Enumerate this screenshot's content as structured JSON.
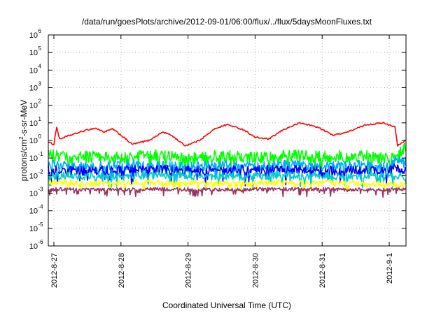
{
  "chart_data": {
    "type": "line",
    "title": "/data/run/goesPlots/archive/2012-09-01/06:00/flux/../flux/5daysMoonFluxes.txt",
    "xlabel": "Coordinated Universal Time (UTC)",
    "ylabel": "protons/cm2-s-sr-MeV",
    "y_scale": "log",
    "ylim": [
      1e-06,
      1000000.0
    ],
    "y_ticks": [
      {
        "base": "10",
        "exp": "-6",
        "value": 1e-06
      },
      {
        "base": "10",
        "exp": "-5",
        "value": 1e-05
      },
      {
        "base": "10",
        "exp": "-4",
        "value": 0.0001
      },
      {
        "base": "10",
        "exp": "-3",
        "value": 0.001
      },
      {
        "base": "10",
        "exp": "-2",
        "value": 0.01
      },
      {
        "base": "10",
        "exp": "-1",
        "value": 0.1
      },
      {
        "base": "10",
        "exp": "0",
        "value": 1
      },
      {
        "base": "10",
        "exp": "1",
        "value": 10
      },
      {
        "base": "10",
        "exp": "2",
        "value": 100
      },
      {
        "base": "10",
        "exp": "3",
        "value": 1000
      },
      {
        "base": "10",
        "exp": "4",
        "value": 10000
      },
      {
        "base": "10",
        "exp": "5",
        "value": 100000
      },
      {
        "base": "10",
        "exp": "6",
        "value": 1000000
      }
    ],
    "x_ticks": [
      "2012-8-27",
      "2012-8-28",
      "2012-8-29",
      "2012-8-30",
      "2012-8-31",
      "2012-9-1"
    ],
    "xlim": [
      "2012-08-26 22:00",
      "2012-09-01 06:00"
    ],
    "grid": true,
    "series": [
      {
        "color": "#ff0000",
        "points": [
          [
            "2012-08-26 22:00",
            0.8
          ],
          [
            "2012-08-27 00:00",
            0.6
          ],
          [
            "2012-08-27 01:00",
            6.0
          ],
          [
            "2012-08-27 02:00",
            1.2
          ],
          [
            "2012-08-27 06:00",
            2.0
          ],
          [
            "2012-08-27 12:00",
            4.0
          ],
          [
            "2012-08-27 15:00",
            5.0
          ],
          [
            "2012-08-27 18:00",
            3.0
          ],
          [
            "2012-08-27 21:00",
            4.5
          ],
          [
            "2012-08-28 00:00",
            2.0
          ],
          [
            "2012-08-28 04:00",
            0.6
          ],
          [
            "2012-08-28 10:00",
            1.0
          ],
          [
            "2012-08-28 15:00",
            3.0
          ],
          [
            "2012-08-28 18:00",
            2.0
          ],
          [
            "2012-08-28 23:00",
            0.5
          ],
          [
            "2012-08-29 04:00",
            1.0
          ],
          [
            "2012-08-29 10:00",
            5.0
          ],
          [
            "2012-08-29 14:00",
            8.0
          ],
          [
            "2012-08-29 20:00",
            4.0
          ],
          [
            "2012-08-30 00:00",
            1.5
          ],
          [
            "2012-08-30 05:00",
            1.2
          ],
          [
            "2012-08-30 10:00",
            4.0
          ],
          [
            "2012-08-30 16:00",
            10.0
          ],
          [
            "2012-08-30 22:00",
            6.0
          ],
          [
            "2012-08-31 04:00",
            2.0
          ],
          [
            "2012-08-31 09:00",
            3.0
          ],
          [
            "2012-08-31 16:00",
            8.0
          ],
          [
            "2012-08-31 22:00",
            10.0
          ],
          [
            "2012-09-01 02:00",
            6.0
          ],
          [
            "2012-09-01 03:00",
            0.5
          ],
          [
            "2012-09-01 06:00",
            1.0
          ]
        ]
      },
      {
        "color": "#00ff00",
        "points": [
          [
            "2012-08-26 22:00",
            0.15
          ],
          [
            "2012-08-27 06:00",
            0.1
          ],
          [
            "2012-08-27 12:00",
            0.12
          ],
          [
            "2012-08-28 00:00",
            0.1
          ],
          [
            "2012-08-28 12:00",
            0.14
          ],
          [
            "2012-08-29 00:00",
            0.09
          ],
          [
            "2012-08-29 12:00",
            0.13
          ],
          [
            "2012-08-30 00:00",
            0.1
          ],
          [
            "2012-08-30 12:00",
            0.14
          ],
          [
            "2012-08-31 00:00",
            0.11
          ],
          [
            "2012-08-31 12:00",
            0.13
          ],
          [
            "2012-09-01 00:00",
            0.1
          ],
          [
            "2012-09-01 03:00",
            0.15
          ],
          [
            "2012-09-01 06:00",
            0.4
          ]
        ]
      },
      {
        "color": "#00aaff",
        "points": [
          [
            "2012-08-26 22:00",
            0.04
          ],
          [
            "2012-08-27 12:00",
            0.03
          ],
          [
            "2012-08-28 00:00",
            0.04
          ],
          [
            "2012-08-28 12:00",
            0.035
          ],
          [
            "2012-08-29 00:00",
            0.03
          ],
          [
            "2012-08-29 12:00",
            0.04
          ],
          [
            "2012-08-30 00:00",
            0.035
          ],
          [
            "2012-08-30 12:00",
            0.04
          ],
          [
            "2012-08-31 00:00",
            0.03
          ],
          [
            "2012-08-31 12:00",
            0.04
          ],
          [
            "2012-09-01 00:00",
            0.03
          ],
          [
            "2012-09-01 03:00",
            0.1
          ],
          [
            "2012-09-01 06:00",
            0.06
          ]
        ]
      },
      {
        "color": "#0000ff",
        "points": [
          [
            "2012-08-26 22:00",
            0.02
          ],
          [
            "2012-08-27 12:00",
            0.018
          ],
          [
            "2012-08-28 00:00",
            0.02
          ],
          [
            "2012-08-28 12:00",
            0.022
          ],
          [
            "2012-08-29 00:00",
            0.018
          ],
          [
            "2012-08-29 12:00",
            0.02
          ],
          [
            "2012-08-30 00:00",
            0.02
          ],
          [
            "2012-08-30 12:00",
            0.022
          ],
          [
            "2012-08-31 00:00",
            0.018
          ],
          [
            "2012-08-31 12:00",
            0.02
          ],
          [
            "2012-09-01 00:00",
            0.018
          ],
          [
            "2012-09-01 03:00",
            0.03
          ],
          [
            "2012-09-01 06:00",
            0.02
          ]
        ]
      },
      {
        "color": "#00cccc",
        "points": [
          [
            "2012-08-26 22:00",
            0.01
          ],
          [
            "2012-08-27 12:00",
            0.009
          ],
          [
            "2012-08-28 12:00",
            0.01
          ],
          [
            "2012-08-29 12:00",
            0.009
          ],
          [
            "2012-08-30 12:00",
            0.01
          ],
          [
            "2012-08-31 12:00",
            0.009
          ],
          [
            "2012-09-01 03:00",
            0.01
          ],
          [
            "2012-09-01 06:00",
            0.008
          ]
        ]
      },
      {
        "color": "#ffff00",
        "points": [
          [
            "2012-08-26 22:00",
            0.004
          ],
          [
            "2012-08-27 12:00",
            0.0035
          ],
          [
            "2012-08-28 12:00",
            0.004
          ],
          [
            "2012-08-29 12:00",
            0.0035
          ],
          [
            "2012-08-30 12:00",
            0.004
          ],
          [
            "2012-08-31 12:00",
            0.0035
          ],
          [
            "2012-09-01 06:00",
            0.003
          ]
        ]
      },
      {
        "color": "#993366",
        "points": [
          [
            "2012-08-26 22:00",
            0.0017
          ],
          [
            "2012-08-27 12:00",
            0.0016
          ],
          [
            "2012-08-28 12:00",
            0.0017
          ],
          [
            "2012-08-29 12:00",
            0.0016
          ],
          [
            "2012-08-30 12:00",
            0.0017
          ],
          [
            "2012-08-31 12:00",
            0.0016
          ],
          [
            "2012-09-01 06:00",
            0.0016
          ]
        ]
      }
    ]
  }
}
